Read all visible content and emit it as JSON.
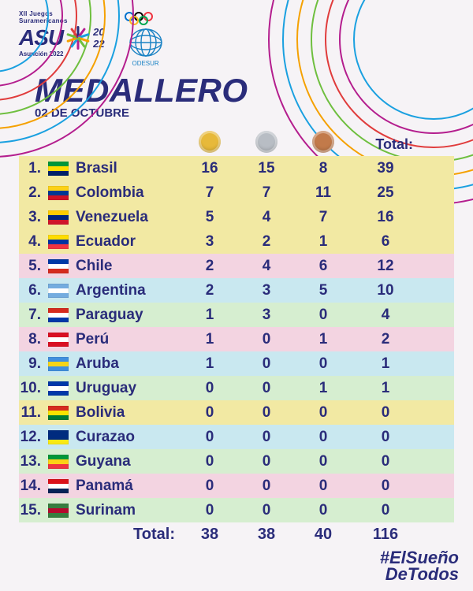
{
  "colors": {
    "primary_text": "#2a2c7a",
    "background": "#f6f3f6",
    "gold": "#e7b93a",
    "silver": "#b8bdc4",
    "bronze": "#c27a4a",
    "row_palette": [
      "#f2e9a3",
      "#f3d4e1",
      "#c9e8f0",
      "#d6eed0"
    ]
  },
  "header": {
    "event_top_line1": "XII Juegos",
    "event_top_line2": "Suramericanos",
    "event_main": "ASU",
    "event_year_top": "20",
    "event_year_bot": "22",
    "event_subtitle": "Asunción 2022",
    "org_label": "ODESUR"
  },
  "title": {
    "main": "MEDALLERO",
    "date": "02 DE OCTUBRE"
  },
  "table": {
    "total_header": "Total:",
    "footer_label": "Total:",
    "medal_colors": {
      "gold": "#e7b93a",
      "silver": "#b8bdc4",
      "bronze": "#c27a4a"
    },
    "rows": [
      {
        "rank": "1.",
        "name": "Brasil",
        "gold": 16,
        "silver": 15,
        "bronze": 8,
        "total": 39,
        "bg": "#f2e9a3",
        "flag": [
          "#009739",
          "#fedd00",
          "#012169"
        ]
      },
      {
        "rank": "2.",
        "name": "Colombia",
        "gold": 7,
        "silver": 7,
        "bronze": 11,
        "total": 25,
        "bg": "#f2e9a3",
        "flag": [
          "#fcd116",
          "#003893",
          "#ce1126"
        ]
      },
      {
        "rank": "3.",
        "name": "Venezuela",
        "gold": 5,
        "silver": 4,
        "bronze": 7,
        "total": 16,
        "bg": "#f2e9a3",
        "flag": [
          "#ffcc00",
          "#00247d",
          "#cf142b"
        ]
      },
      {
        "rank": "4.",
        "name": "Ecuador",
        "gold": 3,
        "silver": 2,
        "bronze": 1,
        "total": 6,
        "bg": "#f2e9a3",
        "flag": [
          "#ffdd00",
          "#0033a0",
          "#ef3340"
        ]
      },
      {
        "rank": "5.",
        "name": "Chile",
        "gold": 2,
        "silver": 4,
        "bronze": 6,
        "total": 12,
        "bg": "#f3d4e1",
        "flag": [
          "#0039a6",
          "#ffffff",
          "#d52b1e"
        ]
      },
      {
        "rank": "6.",
        "name": "Argentina",
        "gold": 2,
        "silver": 3,
        "bronze": 5,
        "total": 10,
        "bg": "#c9e8f0",
        "flag": [
          "#74acdf",
          "#ffffff",
          "#74acdf"
        ]
      },
      {
        "rank": "7.",
        "name": "Paraguay",
        "gold": 1,
        "silver": 3,
        "bronze": 0,
        "total": 4,
        "bg": "#d6eed0",
        "flag": [
          "#d52b1e",
          "#ffffff",
          "#0038a8"
        ]
      },
      {
        "rank": "8.",
        "name": "Perú",
        "gold": 1,
        "silver": 0,
        "bronze": 1,
        "total": 2,
        "bg": "#f3d4e1",
        "flag": [
          "#d91023",
          "#ffffff",
          "#d91023"
        ]
      },
      {
        "rank": "9.",
        "name": "Aruba",
        "gold": 1,
        "silver": 0,
        "bronze": 0,
        "total": 1,
        "bg": "#c9e8f0",
        "flag": [
          "#418fde",
          "#f7d417",
          "#418fde"
        ]
      },
      {
        "rank": "10.",
        "name": "Uruguay",
        "gold": 0,
        "silver": 0,
        "bronze": 1,
        "total": 1,
        "bg": "#d6eed0",
        "flag": [
          "#0038a8",
          "#ffffff",
          "#0038a8"
        ]
      },
      {
        "rank": "11.",
        "name": "Bolivia",
        "gold": 0,
        "silver": 0,
        "bronze": 0,
        "total": 0,
        "bg": "#f2e9a3",
        "flag": [
          "#d52b1e",
          "#f9e300",
          "#007934"
        ]
      },
      {
        "rank": "12.",
        "name": "Curazao",
        "gold": 0,
        "silver": 0,
        "bronze": 0,
        "total": 0,
        "bg": "#c9e8f0",
        "flag": [
          "#002b7f",
          "#002b7f",
          "#f9e814"
        ]
      },
      {
        "rank": "13.",
        "name": "Guyana",
        "gold": 0,
        "silver": 0,
        "bronze": 0,
        "total": 0,
        "bg": "#d6eed0",
        "flag": [
          "#009739",
          "#fcd116",
          "#ef3340"
        ]
      },
      {
        "rank": "14.",
        "name": "Panamá",
        "gold": 0,
        "silver": 0,
        "bronze": 0,
        "total": 0,
        "bg": "#f3d4e1",
        "flag": [
          "#da121a",
          "#ffffff",
          "#072357"
        ]
      },
      {
        "rank": "15.",
        "name": "Surinam",
        "gold": 0,
        "silver": 0,
        "bronze": 0,
        "total": 0,
        "bg": "#d6eed0",
        "flag": [
          "#377e3f",
          "#b40a2d",
          "#377e3f"
        ]
      }
    ],
    "totals": {
      "gold": 38,
      "silver": 38,
      "bronze": 40,
      "total": 116
    }
  },
  "hashtag": {
    "line1": "#ElSueño",
    "line2": "DeTodos"
  }
}
